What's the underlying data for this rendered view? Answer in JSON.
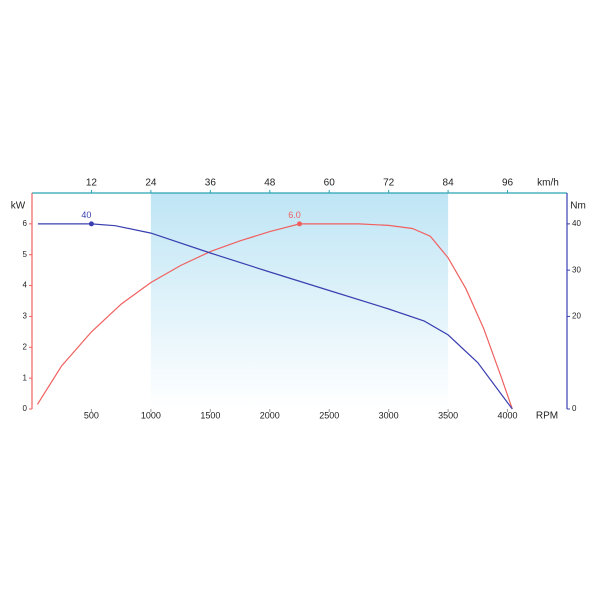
{
  "chart_data": {
    "type": "line",
    "x_label": "RPM",
    "x2_label": "km/h",
    "y_label": "kW",
    "y2_label": "Nm",
    "xlim": [
      0,
      4500
    ],
    "xticks": [
      500,
      1000,
      1500,
      2000,
      2500,
      3000,
      3500,
      4000
    ],
    "x2lim": [
      0,
      108
    ],
    "x2ticks": [
      12,
      24,
      36,
      48,
      60,
      72,
      84,
      96
    ],
    "ylim": [
      0,
      7
    ],
    "yticks": [
      0,
      1,
      2,
      3,
      4,
      5,
      6
    ],
    "y2lim": [
      0,
      46.67
    ],
    "y2ticks": [
      0,
      20,
      30,
      40
    ],
    "highlight": [
      1000,
      3500
    ],
    "series": [
      {
        "name": "kW",
        "color": "#f0605f",
        "axis": "y",
        "x": [
          45,
          250,
          500,
          750,
          1000,
          1250,
          1500,
          1750,
          2000,
          2250,
          2500,
          2750,
          3000,
          3200,
          3350,
          3500,
          3650,
          3800,
          3950,
          4040
        ],
        "values": [
          0.15,
          1.4,
          2.5,
          3.4,
          4.1,
          4.65,
          5.1,
          5.45,
          5.75,
          6.0,
          6.0,
          6.0,
          5.95,
          5.85,
          5.6,
          4.9,
          3.9,
          2.6,
          1.0,
          0
        ],
        "value_labels": [
          null,
          null,
          null,
          null,
          null,
          null,
          null,
          null,
          null,
          "6.0",
          null,
          null,
          null,
          null,
          null,
          null,
          null,
          null,
          null,
          null
        ]
      },
      {
        "name": "Nm",
        "color": "#3a3fb0",
        "axis": "y2",
        "x": [
          50,
          500,
          700,
          1000,
          1500,
          2000,
          2500,
          3000,
          3300,
          3500,
          3750,
          4040
        ],
        "values": [
          40,
          40,
          39.6,
          38,
          33.7,
          29.6,
          25.6,
          21.6,
          19,
          16,
          10,
          0
        ],
        "value_labels": [
          null,
          "40",
          null,
          null,
          null,
          null,
          null,
          null,
          null,
          null,
          null,
          null
        ]
      }
    ]
  }
}
